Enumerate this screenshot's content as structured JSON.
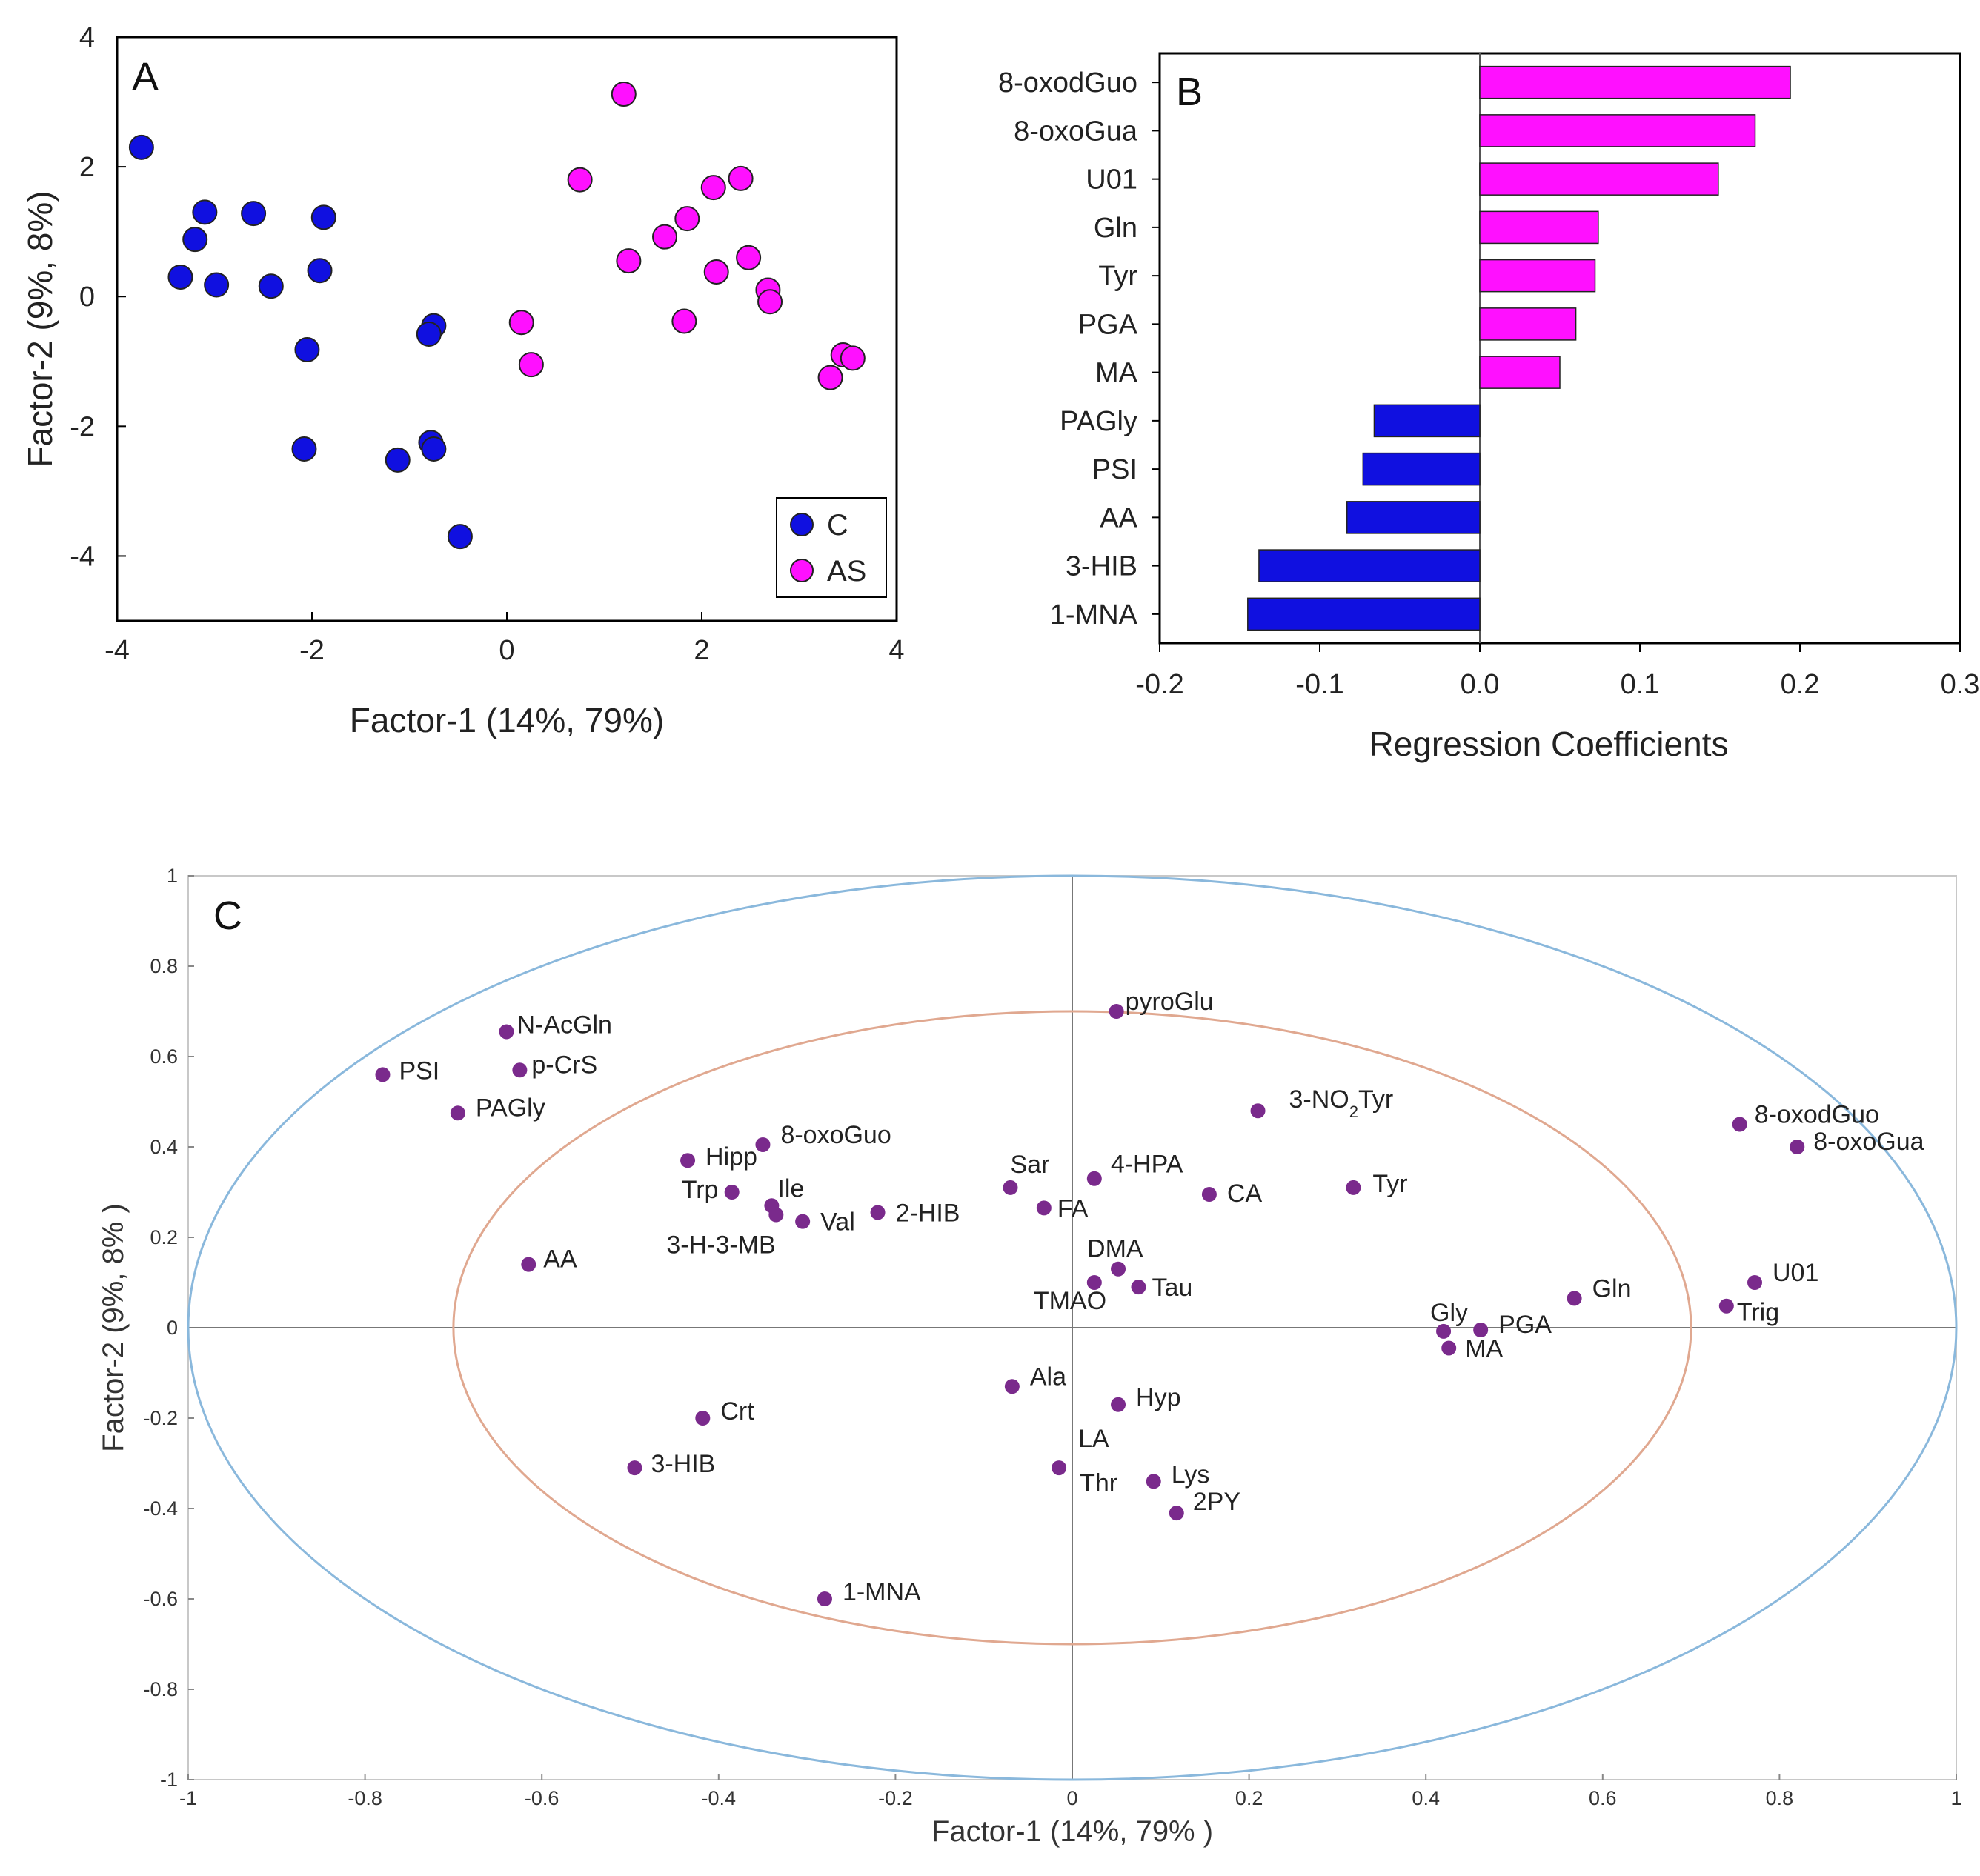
{
  "colors": {
    "C": "#1010e0",
    "AS": "#ff10ff",
    "var": "#7a2a8c",
    "outer": "#8ab8dc",
    "inner": "#e0a890"
  },
  "chart_data": [
    {
      "panel": "A",
      "type": "scatter",
      "xlabel": "Factor-1 (14%, 79%)",
      "ylabel": "Factor-2 (9%, 8%)",
      "xlim": [
        -4,
        4
      ],
      "ylim": [
        -5,
        4
      ],
      "xticks": [
        -4,
        -2,
        0,
        2,
        4
      ],
      "yticks": [
        4,
        2,
        0,
        -2,
        -4
      ],
      "legend": {
        "position": "bottom-right",
        "entries": [
          "C",
          "AS"
        ]
      },
      "series": [
        {
          "name": "C",
          "points": [
            [
              -3.75,
              2.3
            ],
            [
              -3.1,
              1.3
            ],
            [
              -2.6,
              1.28
            ],
            [
              -1.88,
              1.22
            ],
            [
              -3.2,
              0.88
            ],
            [
              -3.35,
              0.3
            ],
            [
              -2.98,
              0.18
            ],
            [
              -2.42,
              0.16
            ],
            [
              -1.92,
              0.4
            ],
            [
              -2.05,
              -0.82
            ],
            [
              -0.75,
              -0.45
            ],
            [
              -0.8,
              -0.58
            ],
            [
              -2.08,
              -2.35
            ],
            [
              -1.12,
              -2.52
            ],
            [
              -0.78,
              -2.25
            ],
            [
              -0.75,
              -2.35
            ],
            [
              -0.48,
              -3.7
            ]
          ]
        },
        {
          "name": "AS",
          "points": [
            [
              1.2,
              3.12
            ],
            [
              0.75,
              1.8
            ],
            [
              2.4,
              1.82
            ],
            [
              2.12,
              1.68
            ],
            [
              1.62,
              0.92
            ],
            [
              1.85,
              1.2
            ],
            [
              1.25,
              0.55
            ],
            [
              2.15,
              0.38
            ],
            [
              2.48,
              0.6
            ],
            [
              2.68,
              0.1
            ],
            [
              2.7,
              -0.08
            ],
            [
              0.15,
              -0.4
            ],
            [
              1.82,
              -0.38
            ],
            [
              0.25,
              -1.05
            ],
            [
              3.45,
              -0.9
            ],
            [
              3.55,
              -0.95
            ],
            [
              3.32,
              -1.25
            ]
          ]
        }
      ]
    },
    {
      "panel": "B",
      "type": "bar",
      "orientation": "horizontal",
      "xlabel": "Regression Coefficients",
      "xlim": [
        -0.2,
        0.3
      ],
      "xticks": [
        "-0.2",
        "-0.1",
        "0.0",
        "0.1",
        "0.2",
        "0.3"
      ],
      "categories": [
        "8-oxodGuo",
        "8-oxoGua",
        "U01",
        "Gln",
        "Tyr",
        "PGA",
        "MA",
        "PAGly",
        "PSI",
        "AA",
        "3-HIB",
        "1-MNA"
      ],
      "values": [
        0.194,
        0.172,
        0.149,
        0.074,
        0.072,
        0.06,
        0.05,
        -0.066,
        -0.073,
        -0.083,
        -0.138,
        -0.145
      ]
    },
    {
      "panel": "C",
      "type": "scatter",
      "xlabel": "Factor-1 (14%, 79% )",
      "ylabel": "Factor-2 (9%,  8% )",
      "xlim": [
        -1,
        1
      ],
      "ylim": [
        -1,
        1
      ],
      "xticks": [
        "-1",
        "-0.8",
        "-0.6",
        "-0.4",
        "-0.2",
        "0",
        "0.2",
        "0.4",
        "0.6",
        "0.8",
        "1"
      ],
      "yticks": [
        "1",
        "0.8",
        "0.6",
        "0.4",
        "0.2",
        "0",
        "-0.2",
        "-0.4",
        "-0.6",
        "-0.8",
        "-1"
      ],
      "ellipses": [
        1.0,
        0.7
      ],
      "points": [
        {
          "label": "pyroGlu",
          "x": 0.05,
          "y": 0.7
        },
        {
          "label": "N-AcGln",
          "x": -0.64,
          "y": 0.655
        },
        {
          "label": "p-CrS",
          "x": -0.625,
          "y": 0.57
        },
        {
          "label": "PSI",
          "x": -0.78,
          "y": 0.56
        },
        {
          "label": "PAGly",
          "x": -0.695,
          "y": 0.475
        },
        {
          "label": "3-NO2Tyr",
          "x": 0.21,
          "y": 0.48
        },
        {
          "label": "8-oxodGuo",
          "x": 0.755,
          "y": 0.45
        },
        {
          "label": "8-oxoGua",
          "x": 0.82,
          "y": 0.4
        },
        {
          "label": "8-oxoGuo",
          "x": -0.35,
          "y": 0.405
        },
        {
          "label": "Hipp",
          "x": -0.435,
          "y": 0.37
        },
        {
          "label": "Trp",
          "x": -0.385,
          "y": 0.3
        },
        {
          "label": "Ile",
          "x": -0.34,
          "y": 0.27
        },
        {
          "label": "3-H-3-MB",
          "x": -0.335,
          "y": 0.25
        },
        {
          "label": "Val",
          "x": -0.305,
          "y": 0.235
        },
        {
          "label": "2-HIB",
          "x": -0.22,
          "y": 0.255
        },
        {
          "label": "Sar",
          "x": -0.07,
          "y": 0.31
        },
        {
          "label": "FA",
          "x": -0.032,
          "y": 0.265
        },
        {
          "label": "4-HPA",
          "x": 0.025,
          "y": 0.33
        },
        {
          "label": "CA",
          "x": 0.155,
          "y": 0.295
        },
        {
          "label": "Tyr",
          "x": 0.318,
          "y": 0.31
        },
        {
          "label": "DMA",
          "x": 0.052,
          "y": 0.13
        },
        {
          "label": "TMAO",
          "x": 0.025,
          "y": 0.1
        },
        {
          "label": "Tau",
          "x": 0.075,
          "y": 0.09
        },
        {
          "label": "AA",
          "x": -0.615,
          "y": 0.14
        },
        {
          "label": "Gln",
          "x": 0.568,
          "y": 0.065
        },
        {
          "label": "U01",
          "x": 0.772,
          "y": 0.1
        },
        {
          "label": "Trig",
          "x": 0.74,
          "y": 0.048
        },
        {
          "label": "Gly",
          "x": 0.42,
          "y": -0.008
        },
        {
          "label": "PGA",
          "x": 0.462,
          "y": -0.005
        },
        {
          "label": "MA",
          "x": 0.426,
          "y": -0.045
        },
        {
          "label": "Ala",
          "x": -0.068,
          "y": -0.13
        },
        {
          "label": "Hyp",
          "x": 0.052,
          "y": -0.17
        },
        {
          "label": "Crt",
          "x": -0.418,
          "y": -0.2
        },
        {
          "label": "3-HIB",
          "x": -0.495,
          "y": -0.31
        },
        {
          "label": "LA",
          "x": -0.015,
          "y": -0.31
        },
        {
          "label": "Thr",
          "x": -0.015,
          "y": -0.31
        },
        {
          "label": "Lys",
          "x": 0.092,
          "y": -0.34
        },
        {
          "label": "2PY",
          "x": 0.118,
          "y": -0.41
        },
        {
          "label": "1-MNA",
          "x": -0.28,
          "y": -0.6
        }
      ]
    }
  ]
}
